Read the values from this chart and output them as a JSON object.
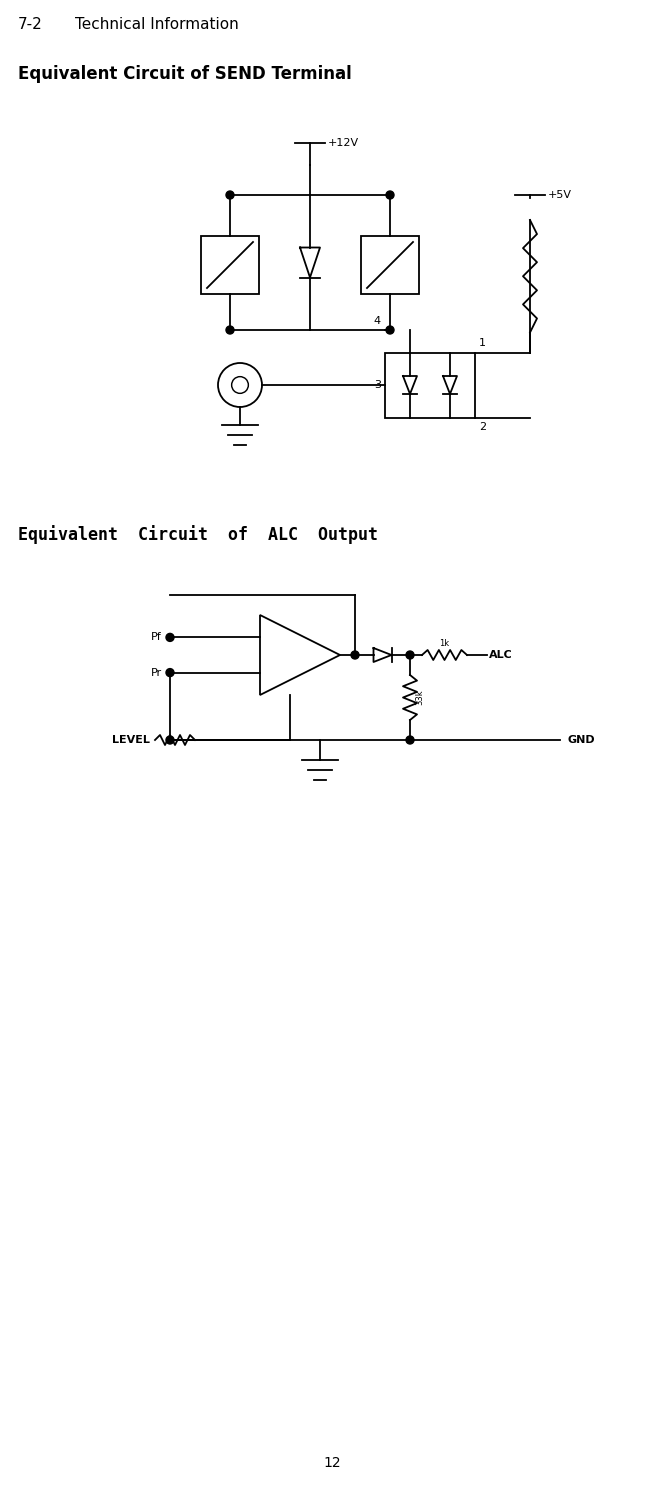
{
  "bg_color": "#ffffff",
  "text_color": "#000000",
  "line_color": "#000000",
  "header_text1": "7-2",
  "header_text2": "Technical Information",
  "section1_title": "Equivalent Circuit of SEND Terminal",
  "section2_title": "Equivalent  Circuit  of  ALC  Output",
  "page_number": "12",
  "lw": 1.3
}
